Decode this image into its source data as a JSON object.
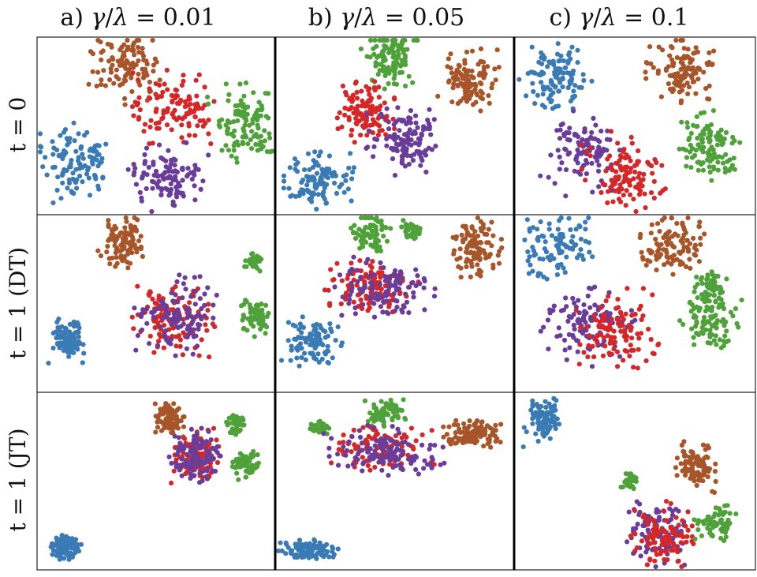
{
  "columns": [
    {
      "prefix": "a) ",
      "gamma": "γ",
      "slash": "/",
      "lambda": "λ",
      "eq": " = 0.01"
    },
    {
      "prefix": "b) ",
      "gamma": "γ",
      "slash": "/",
      "lambda": "λ",
      "eq": " = 0.05"
    },
    {
      "prefix": "c) ",
      "gamma": "γ",
      "slash": "/",
      "lambda": "λ",
      "eq": " = 0.1"
    }
  ],
  "rows": [
    {
      "label": "t = 0"
    },
    {
      "label": "t = 1 (DT)"
    },
    {
      "label": "t = 1 (JT)"
    }
  ],
  "colors": {
    "blue": "#3b7bb5",
    "brown": "#a8552a",
    "red": "#d62728",
    "green": "#4fa23a",
    "purple": "#6a3d9a",
    "frame": "#222222"
  },
  "chart_data": {
    "type": "scatter",
    "grid": false,
    "axis_range": {
      "x": [
        0,
        100
      ],
      "y": [
        0,
        100
      ]
    },
    "panels": [
      {
        "row": 0,
        "col": 0,
        "clusters": [
          {
            "color": "blue",
            "cx": 15,
            "cy": 71,
            "sx": 8,
            "sy": 11,
            "n": 110
          },
          {
            "color": "brown",
            "cx": 37,
            "cy": 15,
            "sx": 7,
            "sy": 10,
            "n": 110
          },
          {
            "color": "red",
            "cx": 57,
            "cy": 40,
            "sx": 8,
            "sy": 10,
            "n": 110
          },
          {
            "color": "green",
            "cx": 88,
            "cy": 48,
            "sx": 7,
            "sy": 11,
            "n": 110
          },
          {
            "color": "purple",
            "cx": 55,
            "cy": 80,
            "sx": 8,
            "sy": 9,
            "n": 110
          }
        ]
      },
      {
        "row": 0,
        "col": 1,
        "clusters": [
          {
            "color": "blue",
            "cx": 17,
            "cy": 82,
            "sx": 7,
            "sy": 8,
            "n": 110
          },
          {
            "color": "green",
            "cx": 47,
            "cy": 10,
            "sx": 6,
            "sy": 8,
            "n": 110
          },
          {
            "color": "brown",
            "cx": 82,
            "cy": 23,
            "sx": 6,
            "sy": 8,
            "n": 110
          },
          {
            "color": "red",
            "cx": 37,
            "cy": 42,
            "sx": 6,
            "sy": 8,
            "n": 110
          },
          {
            "color": "purple",
            "cx": 53,
            "cy": 59,
            "sx": 7,
            "sy": 9,
            "n": 110
          }
        ]
      },
      {
        "row": 0,
        "col": 2,
        "clusters": [
          {
            "color": "blue",
            "cx": 16,
            "cy": 22,
            "sx": 7,
            "sy": 9,
            "n": 110
          },
          {
            "color": "brown",
            "cx": 70,
            "cy": 18,
            "sx": 7,
            "sy": 9,
            "n": 110
          },
          {
            "color": "purple",
            "cx": 28,
            "cy": 66,
            "sx": 8,
            "sy": 11,
            "n": 110
          },
          {
            "color": "red",
            "cx": 45,
            "cy": 76,
            "sx": 8,
            "sy": 11,
            "n": 110
          },
          {
            "color": "green",
            "cx": 82,
            "cy": 61,
            "sx": 6,
            "sy": 10,
            "n": 110
          }
        ]
      },
      {
        "row": 1,
        "col": 0,
        "clusters": [
          {
            "color": "brown",
            "cx": 35,
            "cy": 15,
            "sx": 5,
            "sy": 8,
            "n": 100
          },
          {
            "color": "blue",
            "cx": 12,
            "cy": 72,
            "sx": 4,
            "sy": 6,
            "n": 100
          },
          {
            "color": "green",
            "cx": 92,
            "cy": 25,
            "sx": 2,
            "sy": 3,
            "n": 40
          },
          {
            "color": "green",
            "cx": 93,
            "cy": 58,
            "sx": 3,
            "sy": 5,
            "n": 70
          },
          {
            "color": "red",
            "cx": 58,
            "cy": 58,
            "sx": 8,
            "sy": 11,
            "n": 110
          },
          {
            "color": "purple",
            "cx": 58,
            "cy": 58,
            "sx": 8,
            "sy": 11,
            "n": 110
          }
        ]
      },
      {
        "row": 1,
        "col": 1,
        "clusters": [
          {
            "color": "green",
            "cx": 40,
            "cy": 9,
            "sx": 4,
            "sy": 6,
            "n": 70
          },
          {
            "color": "green",
            "cx": 57,
            "cy": 7,
            "sx": 2,
            "sy": 3,
            "n": 40
          },
          {
            "color": "brown",
            "cx": 85,
            "cy": 17,
            "sx": 5,
            "sy": 8,
            "n": 100
          },
          {
            "color": "red",
            "cx": 40,
            "cy": 40,
            "sx": 9,
            "sy": 8,
            "n": 110
          },
          {
            "color": "purple",
            "cx": 46,
            "cy": 42,
            "sx": 10,
            "sy": 9,
            "n": 110
          },
          {
            "color": "blue",
            "cx": 15,
            "cy": 73,
            "sx": 6,
            "sy": 7,
            "n": 100
          }
        ]
      },
      {
        "row": 1,
        "col": 2,
        "clusters": [
          {
            "color": "blue",
            "cx": 16,
            "cy": 17,
            "sx": 7,
            "sy": 9,
            "n": 100
          },
          {
            "color": "brown",
            "cx": 67,
            "cy": 16,
            "sx": 7,
            "sy": 9,
            "n": 100
          },
          {
            "color": "green",
            "cx": 82,
            "cy": 42,
            "sx": 4,
            "sy": 5,
            "n": 60
          },
          {
            "color": "green",
            "cx": 82,
            "cy": 60,
            "sx": 6,
            "sy": 7,
            "n": 80
          },
          {
            "color": "purple",
            "cx": 30,
            "cy": 62,
            "sx": 9,
            "sy": 11,
            "n": 110
          },
          {
            "color": "red",
            "cx": 43,
            "cy": 65,
            "sx": 8,
            "sy": 11,
            "n": 110
          }
        ]
      },
      {
        "row": 2,
        "col": 0,
        "clusters": [
          {
            "color": "brown",
            "cx": 56,
            "cy": 13,
            "sx": 3,
            "sy": 5,
            "n": 90
          },
          {
            "color": "green",
            "cx": 84,
            "cy": 16,
            "sx": 2,
            "sy": 3,
            "n": 35
          },
          {
            "color": "red",
            "cx": 67,
            "cy": 35,
            "sx": 5,
            "sy": 7,
            "n": 90
          },
          {
            "color": "purple",
            "cx": 67,
            "cy": 35,
            "sx": 5,
            "sy": 7,
            "n": 110
          },
          {
            "color": "green",
            "cx": 89,
            "cy": 40,
            "sx": 3,
            "sy": 4,
            "n": 60
          },
          {
            "color": "blue",
            "cx": 11,
            "cy": 88,
            "sx": 3,
            "sy": 4,
            "n": 90
          }
        ]
      },
      {
        "row": 2,
        "col": 1,
        "clusters": [
          {
            "color": "green",
            "cx": 18,
            "cy": 19,
            "sx": 2,
            "sy": 2,
            "n": 35
          },
          {
            "color": "green",
            "cx": 46,
            "cy": 10,
            "sx": 4,
            "sy": 4,
            "n": 70
          },
          {
            "color": "brown",
            "cx": 84,
            "cy": 22,
            "sx": 6,
            "sy": 4,
            "n": 100
          },
          {
            "color": "red",
            "cx": 44,
            "cy": 31,
            "sx": 10,
            "sy": 6,
            "n": 100
          },
          {
            "color": "purple",
            "cx": 46,
            "cy": 32,
            "sx": 12,
            "sy": 7,
            "n": 120
          },
          {
            "color": "blue",
            "cx": 13,
            "cy": 90,
            "sx": 6,
            "sy": 3,
            "n": 100
          }
        ]
      },
      {
        "row": 2,
        "col": 2,
        "clusters": [
          {
            "color": "blue",
            "cx": 11,
            "cy": 15,
            "sx": 4,
            "sy": 7,
            "n": 90
          },
          {
            "color": "brown",
            "cx": 76,
            "cy": 42,
            "sx": 5,
            "sy": 7,
            "n": 90
          },
          {
            "color": "green",
            "cx": 48,
            "cy": 50,
            "sx": 2,
            "sy": 3,
            "n": 35
          },
          {
            "color": "purple",
            "cx": 60,
            "cy": 80,
            "sx": 6,
            "sy": 9,
            "n": 110
          },
          {
            "color": "red",
            "cx": 62,
            "cy": 82,
            "sx": 6,
            "sy": 9,
            "n": 90
          },
          {
            "color": "green",
            "cx": 84,
            "cy": 75,
            "sx": 4,
            "sy": 5,
            "n": 70
          }
        ]
      }
    ]
  }
}
